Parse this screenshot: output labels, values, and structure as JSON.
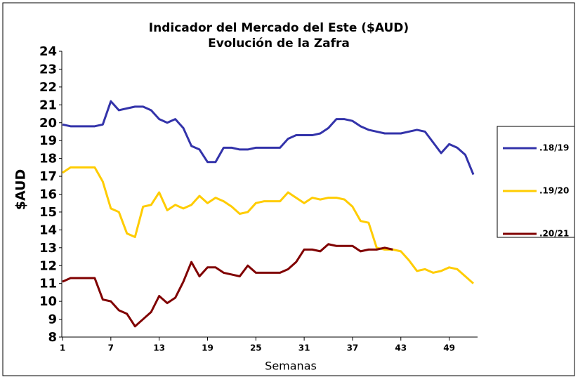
{
  "chart_data": {
    "type": "line",
    "title": "Indicador del Mercado del Este ($AUD)",
    "subtitle": "Evolución de la Zafra",
    "y_label": "$AUD",
    "x_label": "Semanas",
    "x": [
      1,
      2,
      3,
      4,
      5,
      6,
      7,
      8,
      9,
      10,
      11,
      12,
      13,
      14,
      15,
      16,
      17,
      18,
      19,
      20,
      21,
      22,
      23,
      24,
      25,
      26,
      27,
      28,
      29,
      30,
      31,
      32,
      33,
      34,
      35,
      36,
      37,
      38,
      39,
      40,
      41,
      42,
      43,
      44,
      45,
      46,
      47,
      48,
      49,
      50,
      51,
      52
    ],
    "xlim": [
      1,
      52
    ],
    "xticks": [
      1,
      7,
      13,
      19,
      25,
      31,
      37,
      43,
      49
    ],
    "ylim": [
      8,
      24
    ],
    "yticks": [
      8,
      9,
      10,
      11,
      12,
      13,
      14,
      15,
      16,
      17,
      18,
      19,
      20,
      21,
      22,
      23,
      24
    ],
    "legend": "right",
    "series": [
      {
        "name": ".18/19",
        "color": "#3333aa",
        "values": [
          19.9,
          19.8,
          19.8,
          19.8,
          19.8,
          19.9,
          21.2,
          20.7,
          20.8,
          20.9,
          20.9,
          20.7,
          20.2,
          20.0,
          20.2,
          19.7,
          18.7,
          18.5,
          17.8,
          17.8,
          18.6,
          18.6,
          18.5,
          18.5,
          18.6,
          18.6,
          18.6,
          18.6,
          19.1,
          19.3,
          19.3,
          19.3,
          19.4,
          19.7,
          20.2,
          20.2,
          20.1,
          19.8,
          19.6,
          19.5,
          19.4,
          19.4,
          19.4,
          19.5,
          19.6,
          19.5,
          18.9,
          18.3,
          18.8,
          18.6,
          18.2,
          17.1
        ]
      },
      {
        "name": ".19/20",
        "color": "#ffcc00",
        "values": [
          17.2,
          17.5,
          17.5,
          17.5,
          17.5,
          16.7,
          15.2,
          15.0,
          13.8,
          13.6,
          15.3,
          15.4,
          16.1,
          15.1,
          15.4,
          15.2,
          15.4,
          15.9,
          15.5,
          15.8,
          15.6,
          15.3,
          14.9,
          15.0,
          15.5,
          15.6,
          15.6,
          15.6,
          16.1,
          15.8,
          15.5,
          15.8,
          15.7,
          15.8,
          15.8,
          15.7,
          15.3,
          14.5,
          14.4,
          13.0,
          12.9,
          12.9,
          12.8,
          12.3,
          11.7,
          11.8,
          11.6,
          11.7,
          11.9,
          11.8,
          11.4,
          11.0
        ]
      },
      {
        "name": ".20/21",
        "color": "#800000",
        "values": [
          11.1,
          11.3,
          11.3,
          11.3,
          11.3,
          10.1,
          10.0,
          9.5,
          9.3,
          8.6,
          9.0,
          9.4,
          10.3,
          9.9,
          10.2,
          11.1,
          12.2,
          11.4,
          11.9,
          11.9,
          11.6,
          11.5,
          11.4,
          12.0,
          11.6,
          11.6,
          11.6,
          11.6,
          11.8,
          12.2,
          12.9,
          12.9,
          12.8,
          13.2,
          13.1,
          13.1,
          13.1,
          12.8,
          12.9,
          12.9,
          13.0,
          12.9,
          null,
          null,
          null,
          null,
          null,
          null,
          null,
          null,
          null,
          null
        ]
      }
    ]
  }
}
